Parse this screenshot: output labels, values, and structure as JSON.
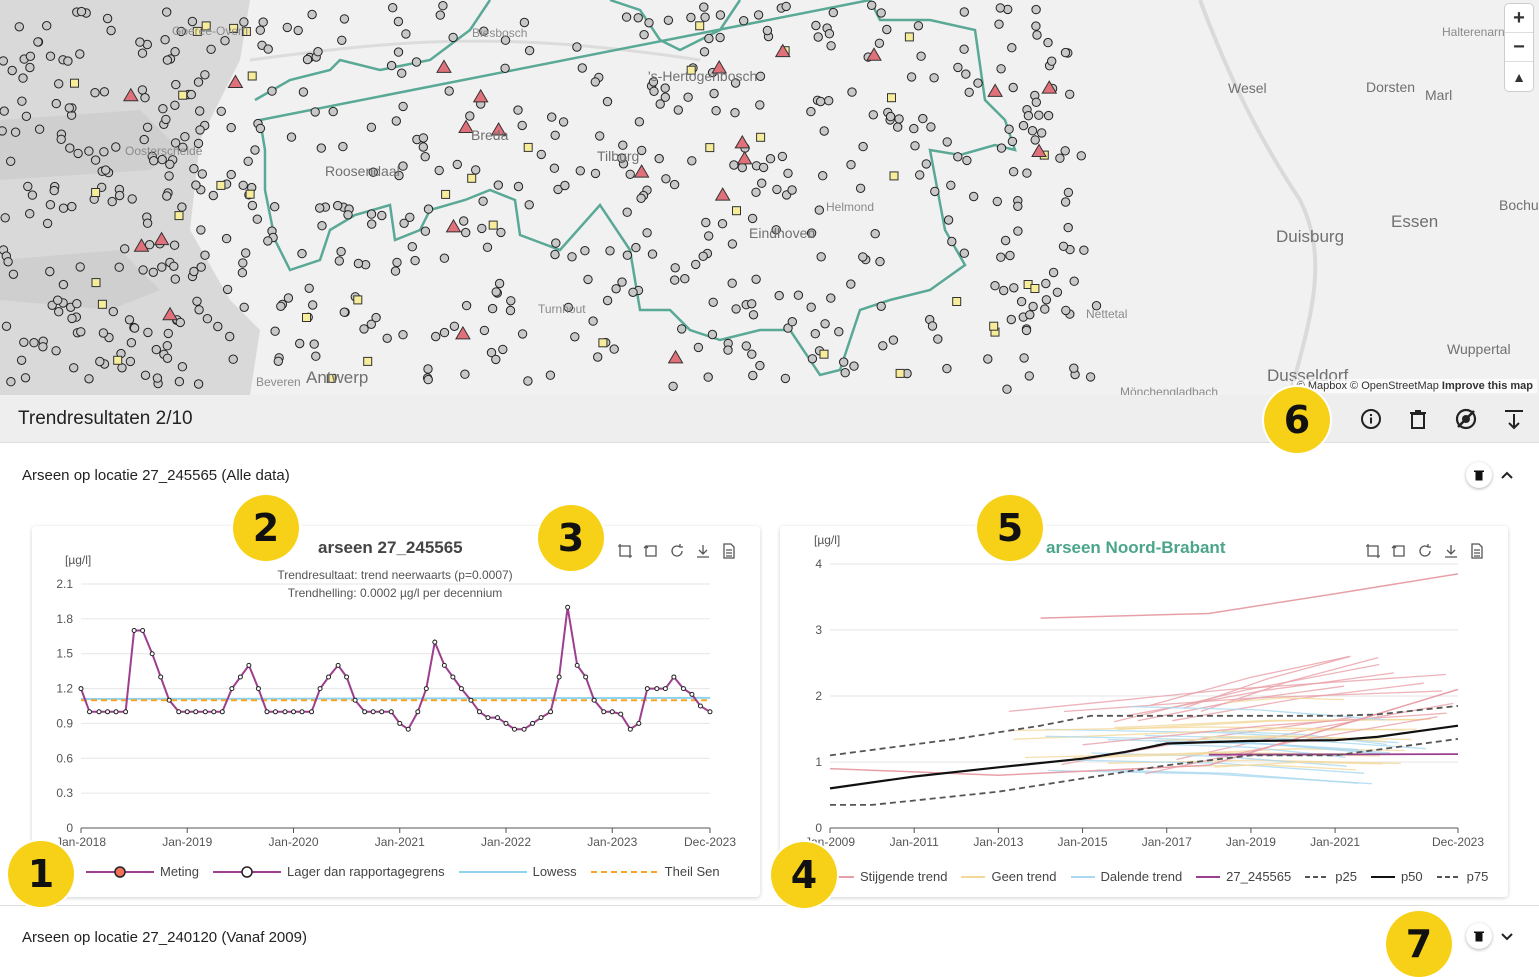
{
  "map": {
    "zoom_in": "+",
    "zoom_out": "−",
    "compass": "▲",
    "attribution_mapbox": "© Mapbox",
    "attribution_osm": "© OpenStreetMap",
    "attribution_improve": "Improve this map",
    "places": [
      {
        "name": "Goeree-Overfl"
      },
      {
        "name": "Biesbosch"
      },
      {
        "name": "Halterenarn"
      },
      {
        "name": "Wesel"
      },
      {
        "name": "Dorsten"
      },
      {
        "name": "Marl"
      },
      {
        "name": "Breda"
      },
      {
        "name": "Tilburg"
      },
      {
        "name": "Roosendaal"
      },
      {
        "name": "Oosterschelde"
      },
      {
        "name": "Helmond"
      },
      {
        "name": "Eindhoven"
      },
      {
        "name": "Essen"
      },
      {
        "name": "Bochum"
      },
      {
        "name": "Duisburg"
      },
      {
        "name": "Turnhout"
      },
      {
        "name": "Nettetal"
      },
      {
        "name": "Wuppertal"
      },
      {
        "name": "Antwerp"
      },
      {
        "name": "Beveren"
      },
      {
        "name": "Dusseldorf"
      },
      {
        "name": "Mönchengladbach"
      },
      {
        "name": "'s-Hertogenbosch"
      }
    ]
  },
  "header": {
    "title": "Trendresultaten 2/10",
    "icons": [
      "info-icon",
      "trash-icon",
      "eye-off-icon",
      "collapse-all-icon"
    ]
  },
  "sections": [
    {
      "title": "Arseen op locatie 27_245565 (Alle data)",
      "expanded": true
    },
    {
      "title": "Arseen op locatie 27_240120 (Vanaf 2009)",
      "expanded": false
    }
  ],
  "badges": [
    "1",
    "2",
    "3",
    "4",
    "5",
    "6",
    "7"
  ],
  "colors": {
    "measurement": "#9c3f8e",
    "lowess": "#8fd3f0",
    "theilsen": "#f5a623",
    "nb_title": "#4aa58a",
    "rising": "#e8a0a8",
    "none": "#f3d89a",
    "falling": "#a9d8f0",
    "border_line": "#5aa896"
  },
  "chart_data": [
    {
      "type": "line",
      "title": "arseen 27_245565",
      "subtitle_1": "Trendresultaat: trend neerwaarts (p=0.0007)",
      "subtitle_2": "Trendhelling: 0.0002 µg/l per decennium",
      "ylabel": "[µg/l]",
      "ylim": [
        0,
        2.1
      ],
      "yticks": [
        "0",
        "0.3",
        "0.6",
        "0.9",
        "1.2",
        "1.5",
        "1.8",
        "2.1"
      ],
      "xticks": [
        "Jan-2018",
        "Jan-2019",
        "Jan-2020",
        "Jan-2021",
        "Jan-2022",
        "Jan-2023",
        "Dec-2023"
      ],
      "xlim": [
        2018.0,
        2023.92
      ],
      "series": [
        {
          "name": "Meting",
          "x": [
            2018.0,
            2018.08,
            2018.17,
            2018.25,
            2018.33,
            2018.42,
            2018.5,
            2018.58,
            2018.67,
            2018.75,
            2018.83,
            2018.92,
            2019.0,
            2019.08,
            2019.17,
            2019.25,
            2019.33,
            2019.42,
            2019.5,
            2019.58,
            2019.67,
            2019.75,
            2019.83,
            2019.92,
            2020.0,
            2020.08,
            2020.17,
            2020.25,
            2020.33,
            2020.42,
            2020.5,
            2020.58,
            2020.67,
            2020.75,
            2020.83,
            2020.92,
            2021.0,
            2021.08,
            2021.17,
            2021.25,
            2021.33,
            2021.42,
            2021.5,
            2021.58,
            2021.67,
            2021.75,
            2021.83,
            2021.92,
            2022.0,
            2022.08,
            2022.17,
            2022.25,
            2022.33,
            2022.42,
            2022.5,
            2022.58,
            2022.67,
            2022.75,
            2022.83,
            2022.92,
            2023.0,
            2023.08,
            2023.17,
            2023.25,
            2023.33,
            2023.42,
            2023.5,
            2023.58,
            2023.67,
            2023.75,
            2023.83,
            2023.92
          ],
          "values": [
            1.2,
            1.0,
            1.0,
            1.0,
            1.0,
            1.0,
            1.7,
            1.7,
            1.5,
            1.3,
            1.1,
            1.0,
            1.0,
            1.0,
            1.0,
            1.0,
            1.0,
            1.2,
            1.3,
            1.4,
            1.2,
            1.0,
            1.0,
            1.0,
            1.0,
            1.0,
            1.0,
            1.2,
            1.3,
            1.4,
            1.3,
            1.1,
            1.0,
            1.0,
            1.0,
            1.0,
            0.9,
            0.85,
            1.0,
            1.2,
            1.6,
            1.4,
            1.3,
            1.2,
            1.1,
            1.0,
            0.95,
            0.95,
            0.9,
            0.85,
            0.85,
            0.9,
            0.95,
            1.0,
            1.3,
            1.9,
            1.4,
            1.3,
            1.1,
            1.0,
            1.0,
            0.98,
            0.85,
            0.9,
            1.2,
            1.2,
            1.2,
            1.3,
            1.2,
            1.15,
            1.05,
            1.0
          ]
        },
        {
          "name": "Lowess",
          "x": [
            2018.0,
            2023.92
          ],
          "values": [
            1.11,
            1.12
          ]
        },
        {
          "name": "Theil Sen",
          "x": [
            2018.0,
            2023.92
          ],
          "values": [
            1.1,
            1.1
          ]
        }
      ],
      "legend": [
        "Meting",
        "Lager dan rapportagegrens",
        "Lowess",
        "Theil Sen"
      ]
    },
    {
      "type": "line",
      "title": "arseen Noord-Brabant",
      "ylabel": "[µg/l]",
      "ylim": [
        0,
        4
      ],
      "yticks": [
        "0",
        "1",
        "2",
        "3",
        "4"
      ],
      "xticks": [
        "Jan-2009",
        "Jan-2011",
        "Jan-2013",
        "Jan-2015",
        "Jan-2017",
        "Jan-2019",
        "Jan-2021",
        "Dec-2023"
      ],
      "xlim": [
        2009.0,
        2023.92
      ],
      "series": [
        {
          "name": "p25",
          "x": [
            2009,
            2010,
            2013,
            2015,
            2017,
            2019,
            2021,
            2023.92
          ],
          "values": [
            0.35,
            0.35,
            0.55,
            0.75,
            0.95,
            1.1,
            1.1,
            1.35
          ]
        },
        {
          "name": "p50",
          "x": [
            2009,
            2011,
            2013,
            2015,
            2016,
            2017,
            2019,
            2021,
            2022,
            2023.92
          ],
          "values": [
            0.6,
            0.78,
            0.92,
            1.05,
            1.15,
            1.28,
            1.32,
            1.33,
            1.38,
            1.55
          ]
        },
        {
          "name": "p75",
          "x": [
            2009,
            2012,
            2014,
            2015.2,
            2016,
            2017,
            2019,
            2021,
            2022,
            2023.92
          ],
          "values": [
            1.1,
            1.35,
            1.55,
            1.7,
            1.7,
            1.7,
            1.7,
            1.7,
            1.72,
            1.85
          ]
        },
        {
          "name": "27_245565",
          "x": [
            2018.0,
            2023.92
          ],
          "values": [
            1.11,
            1.12
          ]
        }
      ],
      "legend": [
        "Stijgende trend",
        "Geen trend",
        "Dalende trend",
        "27_245565",
        "p25",
        "p50",
        "p75"
      ]
    }
  ]
}
